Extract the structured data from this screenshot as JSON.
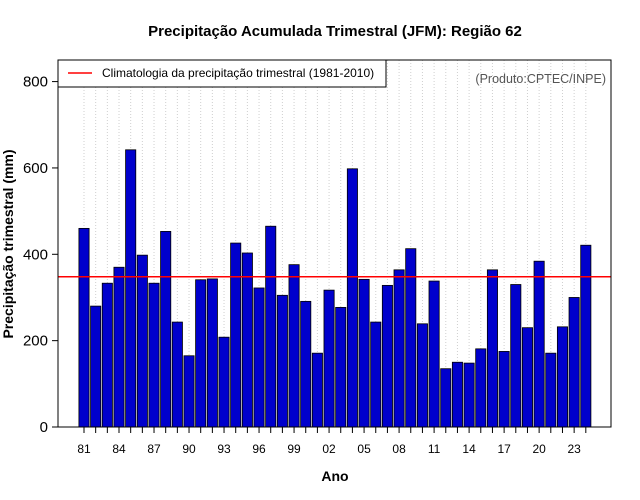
{
  "chart_data": {
    "type": "bar",
    "title": "Precipitação Acumulada Trimestral (JFM): Região 62",
    "xlabel": "Ano",
    "ylabel": "Precipitação trimestral (mm)",
    "ylim": [
      0,
      850
    ],
    "yticks": [
      0,
      200,
      400,
      600,
      800
    ],
    "categories": [
      "1981",
      "1982",
      "1983",
      "1984",
      "1985",
      "1986",
      "1987",
      "1988",
      "1989",
      "1990",
      "1991",
      "1992",
      "1993",
      "1994",
      "1995",
      "1996",
      "1997",
      "1998",
      "1999",
      "2000",
      "2001",
      "2002",
      "2003",
      "2004",
      "2005",
      "2006",
      "2007",
      "2008",
      "2009",
      "2010",
      "2011",
      "2012",
      "2013",
      "2014",
      "2015",
      "2016",
      "2017",
      "2018",
      "2019",
      "2020",
      "2021",
      "2022",
      "2023",
      "2024"
    ],
    "tick_labels": [
      "81",
      "84",
      "87",
      "90",
      "93",
      "96",
      "99",
      "02",
      "05",
      "08",
      "11",
      "14",
      "17",
      "20",
      "23"
    ],
    "values": [
      460,
      280,
      333,
      370,
      642,
      398,
      333,
      453,
      243,
      165,
      341,
      343,
      208,
      426,
      403,
      322,
      465,
      305,
      376,
      291,
      171,
      317,
      277,
      598,
      342,
      243,
      328,
      364,
      413,
      239,
      338,
      135,
      150,
      148,
      181,
      364,
      175,
      330,
      230,
      384,
      171,
      232,
      300,
      421
    ],
    "bar_color": "#0000cc",
    "reference_line": {
      "label": "Climatologia da precipitação trimestral (1981-2010)",
      "value": 348,
      "color": "#ff0000"
    },
    "legend_position": "top-left",
    "grid": "vertical dotted",
    "credit": "(Produto:CPTEC/INPE)"
  }
}
